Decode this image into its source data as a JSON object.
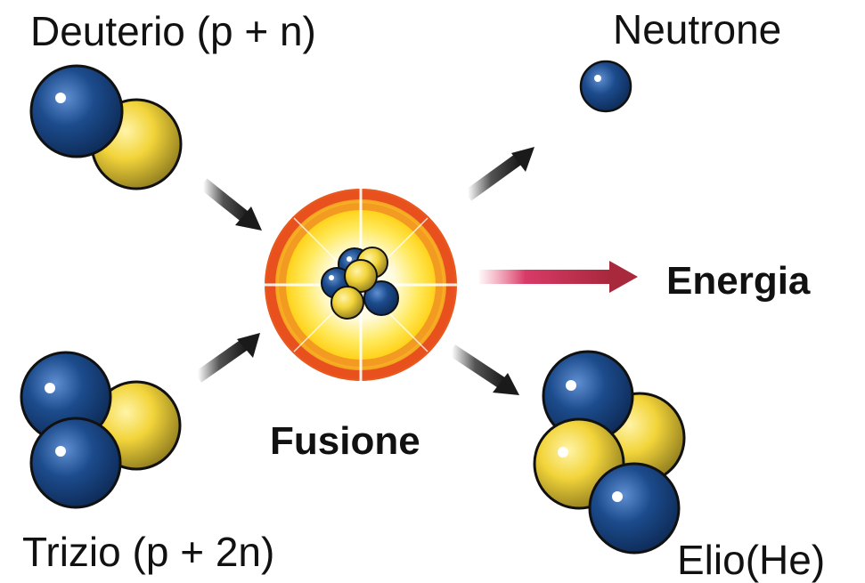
{
  "labels": {
    "deuterium": "Deuterio (p + n)",
    "neutron": "Neutrone",
    "energy": "Energia",
    "fusion": "Fusione",
    "tritium": "Trizio (p + 2n)",
    "helium": "Elio(He)"
  },
  "colors": {
    "neutron_blue": "#1c4b8c",
    "proton_yellow": "#f2d43a",
    "arrow_dark": "#1a1a1a",
    "energy_arrow": "#a8283c",
    "flash_orange": "#e8511d",
    "flash_yellow": "#ffd21a"
  }
}
